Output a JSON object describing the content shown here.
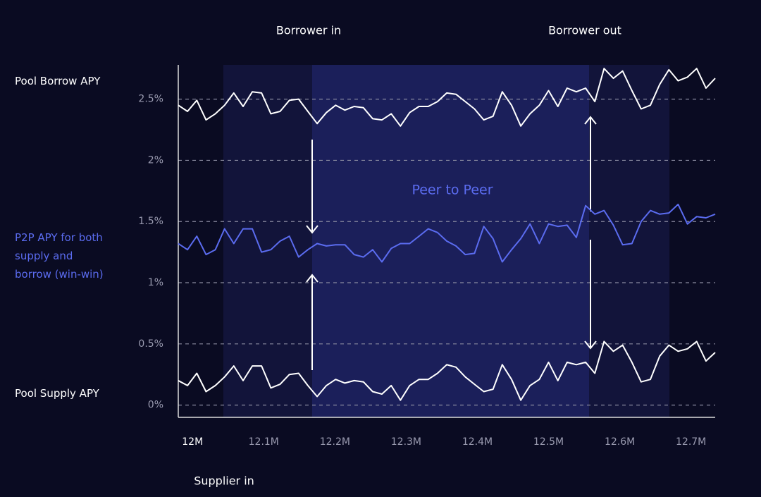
{
  "chart_data": {
    "type": "line",
    "annotations": [
      "Borrower in",
      "Borrower out",
      "Peer to Peer",
      "Supplier in"
    ],
    "x": [
      11.98,
      11.993,
      12.006,
      12.019,
      12.032,
      12.045,
      12.058,
      12.071,
      12.084,
      12.097,
      12.11,
      12.123,
      12.136,
      12.149,
      12.162,
      12.175,
      12.188,
      12.201,
      12.214,
      12.227,
      12.24,
      12.253,
      12.266,
      12.279,
      12.292,
      12.305,
      12.318,
      12.331,
      12.344,
      12.357,
      12.37,
      12.383,
      12.396,
      12.409,
      12.422,
      12.435,
      12.448,
      12.461,
      12.474,
      12.487,
      12.5,
      12.513,
      12.526,
      12.539,
      12.552,
      12.565,
      12.578,
      12.591,
      12.604,
      12.617,
      12.63,
      12.643,
      12.656,
      12.669,
      12.682,
      12.695,
      12.708,
      12.721,
      12.734
    ],
    "series": [
      {
        "name": "Pool Borrow APY",
        "color": "#ffffff",
        "values": [
          2.45,
          2.4,
          2.49,
          2.33,
          2.38,
          2.45,
          2.55,
          2.44,
          2.56,
          2.55,
          2.38,
          2.4,
          2.49,
          2.5,
          2.4,
          2.3,
          2.39,
          2.45,
          2.41,
          2.44,
          2.43,
          2.34,
          2.33,
          2.38,
          2.28,
          2.39,
          2.44,
          2.44,
          2.48,
          2.55,
          2.54,
          2.48,
          2.42,
          2.33,
          2.36,
          2.56,
          2.45,
          2.28,
          2.38,
          2.45,
          2.57,
          2.44,
          2.59,
          2.56,
          2.59,
          2.48,
          2.75,
          2.67,
          2.73,
          2.57,
          2.42,
          2.45,
          2.62,
          2.74,
          2.65,
          2.68,
          2.75,
          2.59,
          2.67
        ]
      },
      {
        "name": "P2P APY for both supply and borrow (win-win)",
        "color": "#5b6cf0",
        "values": [
          1.32,
          1.27,
          1.38,
          1.23,
          1.27,
          1.44,
          1.32,
          1.44,
          1.44,
          1.25,
          1.27,
          1.34,
          1.38,
          1.21,
          1.27,
          1.32,
          1.3,
          1.31,
          1.31,
          1.23,
          1.21,
          1.27,
          1.17,
          1.28,
          1.32,
          1.32,
          1.38,
          1.44,
          1.41,
          1.34,
          1.3,
          1.23,
          1.24,
          1.46,
          1.36,
          1.17,
          1.27,
          1.36,
          1.48,
          1.32,
          1.48,
          1.46,
          1.47,
          1.37,
          1.63,
          1.56,
          1.59,
          1.47,
          1.31,
          1.32,
          1.5,
          1.59,
          1.56,
          1.57,
          1.64,
          1.48,
          1.54,
          1.53,
          1.56
        ]
      },
      {
        "name": "Pool Supply APY",
        "color": "#ffffff",
        "values": [
          0.2,
          0.16,
          0.26,
          0.11,
          0.16,
          0.23,
          0.32,
          0.2,
          0.32,
          0.32,
          0.14,
          0.17,
          0.25,
          0.26,
          0.16,
          0.07,
          0.16,
          0.21,
          0.18,
          0.2,
          0.19,
          0.11,
          0.09,
          0.16,
          0.04,
          0.16,
          0.21,
          0.21,
          0.26,
          0.33,
          0.31,
          0.23,
          0.17,
          0.11,
          0.13,
          0.33,
          0.21,
          0.04,
          0.16,
          0.21,
          0.35,
          0.2,
          0.35,
          0.33,
          0.35,
          0.26,
          0.52,
          0.44,
          0.49,
          0.35,
          0.19,
          0.21,
          0.4,
          0.49,
          0.44,
          0.46,
          0.52,
          0.36,
          0.43
        ]
      }
    ],
    "xlim": [
      11.98,
      12.734
    ],
    "xticks": [
      {
        "value": 12,
        "label": "12M"
      },
      {
        "value": 12.1,
        "label": "12.1M"
      },
      {
        "value": 12.2,
        "label": "12.2M"
      },
      {
        "value": 12.3,
        "label": "12.3M"
      },
      {
        "value": 12.4,
        "label": "12.4M"
      },
      {
        "value": 12.5,
        "label": "12.5M"
      },
      {
        "value": 12.6,
        "label": "12.6M"
      },
      {
        "value": 12.7,
        "label": "12.7M"
      }
    ],
    "ylim": [
      -0.1,
      2.78
    ],
    "yticks": [
      {
        "value": 0,
        "label": "0%"
      },
      {
        "value": 0.5,
        "label": "0.5%"
      },
      {
        "value": 1,
        "label": "1%"
      },
      {
        "value": 1.5,
        "label": "1.5%"
      },
      {
        "value": 2,
        "label": "2%"
      },
      {
        "value": 2.5,
        "label": "2.5%"
      }
    ],
    "grid": true
  }
}
